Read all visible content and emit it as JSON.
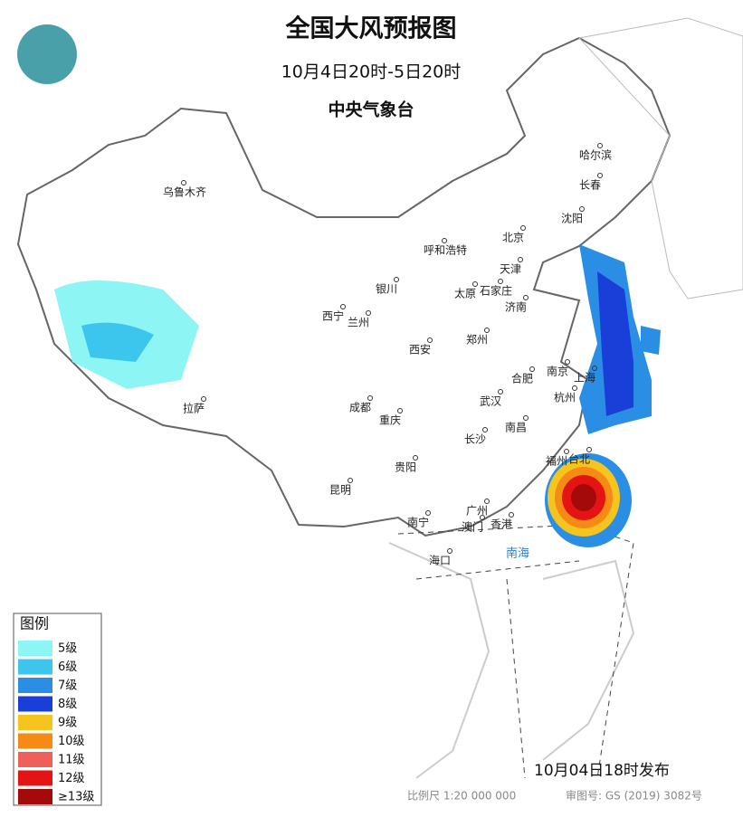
{
  "header": {
    "title": "全国大风预报图",
    "period": "10月4日20时-5日20时",
    "issuer": "中央气象台"
  },
  "legend": {
    "title": "图例",
    "items": [
      {
        "label": "5级",
        "color": "#8ef5f5"
      },
      {
        "label": "6级",
        "color": "#3cc6ee"
      },
      {
        "label": "7级",
        "color": "#2a8fe4"
      },
      {
        "label": "8级",
        "color": "#1a3fd8"
      },
      {
        "label": "9级",
        "color": "#f5c41e"
      },
      {
        "label": "10级",
        "color": "#f58a14"
      },
      {
        "label": "11级",
        "color": "#f0605a"
      },
      {
        "label": "12级",
        "color": "#e41414"
      },
      {
        "label": "≥13级",
        "color": "#a50a0a"
      }
    ]
  },
  "cities": [
    "乌鲁木齐",
    "哈尔滨",
    "长春",
    "沈阳",
    "北京",
    "天津",
    "呼和浩特",
    "银川",
    "太原",
    "石家庄",
    "济南",
    "西宁",
    "兰州",
    "郑州",
    "西安",
    "合肥",
    "南京",
    "上海",
    "杭州",
    "武汉",
    "成都",
    "重庆",
    "拉萨",
    "南昌",
    "长沙",
    "福州",
    "台北",
    "贵阳",
    "昆明",
    "南宁",
    "广州",
    "澳门",
    "香港",
    "海口"
  ],
  "sea_label": "南海",
  "footer": {
    "issued": "10月04日18时发布",
    "scale": "比例尺 1:20 000 000",
    "approval": "审图号: GS (2019) 3082号"
  }
}
